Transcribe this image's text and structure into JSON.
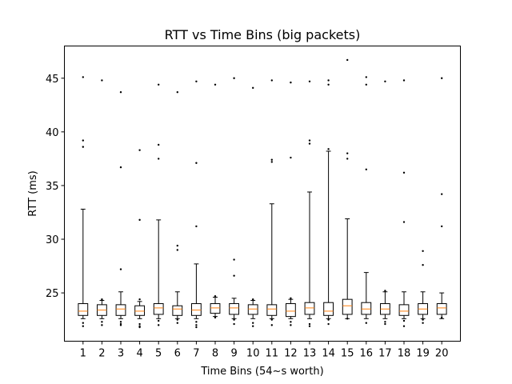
{
  "chart_data": {
    "type": "box",
    "title": "RTT vs Time Bins (big packets)",
    "xlabel": "Time Bins (54~s worth)",
    "ylabel": "RTT (ms)",
    "ylim": [
      20.5,
      48.0
    ],
    "yticks": [
      25,
      30,
      35,
      40,
      45
    ],
    "categories": [
      "1",
      "2",
      "3",
      "4",
      "5",
      "6",
      "7",
      "8",
      "9",
      "10",
      "11",
      "12",
      "13",
      "14",
      "15",
      "16",
      "17",
      "18",
      "19",
      "20"
    ],
    "colors": {
      "box": "#000000",
      "median": "#ff7f0e",
      "whisker": "#000000",
      "flier": "#000000"
    },
    "boxes": [
      {
        "category": "1",
        "whislo": 22.6,
        "q1": 22.9,
        "med": 23.3,
        "q3": 24.0,
        "whishi": 32.8,
        "fliers": [
          45.1,
          39.2,
          38.6,
          22.2,
          21.9
        ]
      },
      {
        "category": "2",
        "whislo": 22.6,
        "q1": 22.9,
        "med": 23.4,
        "q3": 23.9,
        "whishi": 24.3,
        "fliers": [
          44.8,
          24.4,
          22.3,
          22.0
        ]
      },
      {
        "category": "3",
        "whislo": 22.6,
        "q1": 22.9,
        "med": 23.5,
        "q3": 23.9,
        "whishi": 25.1,
        "fliers": [
          43.7,
          36.7,
          27.2,
          22.3,
          22.1,
          22.0
        ]
      },
      {
        "category": "4",
        "whislo": 22.6,
        "q1": 22.9,
        "med": 23.3,
        "q3": 23.8,
        "whishi": 24.2,
        "fliers": [
          38.3,
          31.8,
          24.4,
          22.1,
          21.9,
          21.8
        ]
      },
      {
        "category": "5",
        "whislo": 22.6,
        "q1": 23.0,
        "med": 23.6,
        "q3": 24.0,
        "whishi": 31.8,
        "fliers": [
          44.4,
          38.8,
          37.5,
          22.4,
          22.0
        ]
      },
      {
        "category": "6",
        "whislo": 22.6,
        "q1": 22.9,
        "med": 23.5,
        "q3": 23.8,
        "whishi": 25.1,
        "fliers": [
          43.7,
          29.4,
          29.0,
          22.5,
          22.2
        ]
      },
      {
        "category": "7",
        "whislo": 22.6,
        "q1": 22.9,
        "med": 23.4,
        "q3": 24.0,
        "whishi": 27.7,
        "fliers": [
          44.7,
          37.1,
          31.2,
          22.3,
          22.0,
          21.8
        ]
      },
      {
        "category": "8",
        "whislo": 22.8,
        "q1": 23.1,
        "med": 23.6,
        "q3": 24.0,
        "whishi": 24.6,
        "fliers": [
          44.4,
          24.7,
          22.7
        ]
      },
      {
        "category": "9",
        "whislo": 22.6,
        "q1": 23.0,
        "med": 23.6,
        "q3": 24.0,
        "whishi": 24.5,
        "fliers": [
          45.0,
          28.1,
          26.6,
          22.5,
          22.1
        ]
      },
      {
        "category": "10",
        "whislo": 22.6,
        "q1": 23.0,
        "med": 23.5,
        "q3": 23.9,
        "whishi": 24.3,
        "fliers": [
          44.1,
          24.4,
          22.2,
          21.9
        ]
      },
      {
        "category": "11",
        "whislo": 22.6,
        "q1": 22.9,
        "med": 23.5,
        "q3": 23.9,
        "whishi": 33.3,
        "fliers": [
          44.8,
          37.4,
          37.2,
          22.5,
          22.0
        ]
      },
      {
        "category": "12",
        "whislo": 22.6,
        "q1": 22.8,
        "med": 23.3,
        "q3": 24.0,
        "whishi": 24.4,
        "fliers": [
          44.6,
          37.6,
          24.5,
          22.3,
          22.0
        ]
      },
      {
        "category": "13",
        "whislo": 22.6,
        "q1": 23.0,
        "med": 23.6,
        "q3": 24.1,
        "whishi": 34.4,
        "fliers": [
          44.7,
          39.2,
          38.9,
          22.1,
          21.9
        ]
      },
      {
        "category": "14",
        "whislo": 22.6,
        "q1": 22.9,
        "med": 23.3,
        "q3": 24.1,
        "whishi": 38.2,
        "fliers": [
          44.8,
          44.4,
          38.4,
          22.5,
          22.1
        ]
      },
      {
        "category": "15",
        "whislo": 22.6,
        "q1": 23.0,
        "med": 23.8,
        "q3": 24.4,
        "whishi": 31.9,
        "fliers": [
          46.7,
          38.0,
          37.5,
          22.6
        ]
      },
      {
        "category": "16",
        "whislo": 22.6,
        "q1": 23.0,
        "med": 23.5,
        "q3": 24.1,
        "whishi": 26.9,
        "fliers": [
          45.1,
          44.4,
          36.5,
          22.2
        ]
      },
      {
        "category": "17",
        "whislo": 22.6,
        "q1": 23.0,
        "med": 23.5,
        "q3": 24.0,
        "whishi": 25.1,
        "fliers": [
          44.7,
          25.2,
          22.3,
          22.1
        ]
      },
      {
        "category": "18",
        "whislo": 22.6,
        "q1": 22.9,
        "med": 23.3,
        "q3": 23.9,
        "whishi": 25.1,
        "fliers": [
          44.8,
          36.2,
          31.6,
          22.4,
          21.9
        ]
      },
      {
        "category": "19",
        "whislo": 22.6,
        "q1": 23.0,
        "med": 23.5,
        "q3": 24.0,
        "whishi": 25.1,
        "fliers": [
          28.9,
          27.6,
          22.5,
          22.2
        ]
      },
      {
        "category": "20",
        "whislo": 22.6,
        "q1": 23.0,
        "med": 23.6,
        "q3": 24.0,
        "whishi": 25.0,
        "fliers": [
          45.0,
          34.2,
          31.2,
          22.7
        ]
      }
    ],
    "grid": false
  }
}
